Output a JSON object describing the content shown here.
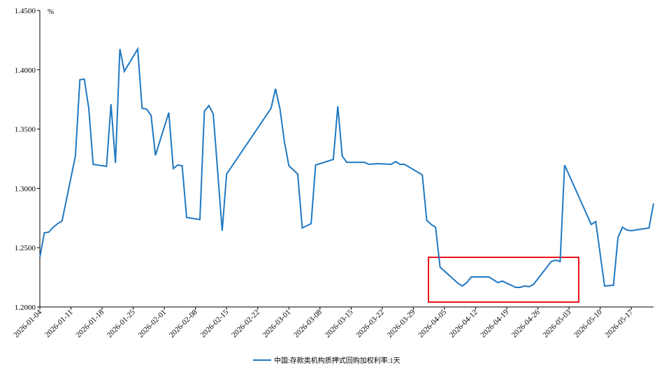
{
  "chart_data": {
    "type": "line",
    "unit_label": "%",
    "x": [
      "2026-01-04",
      "2026-01-05",
      "2026-01-06",
      "2026-01-07",
      "2026-01-08",
      "2026-01-09",
      "2026-01-12",
      "2026-01-13",
      "2026-01-14",
      "2026-01-15",
      "2026-01-16",
      "2026-01-19",
      "2026-01-20",
      "2026-01-21",
      "2026-01-22",
      "2026-01-23",
      "2026-01-26",
      "2026-01-27",
      "2026-01-28",
      "2026-01-29",
      "2026-01-30",
      "2026-02-02",
      "2026-02-03",
      "2026-02-04",
      "2026-02-05",
      "2026-02-06",
      "2026-02-09",
      "2026-02-10",
      "2026-02-11",
      "2026-02-12",
      "2026-02-14",
      "2026-02-15",
      "2026-02-25",
      "2026-02-26",
      "2026-02-27",
      "2026-02-28",
      "2026-03-01",
      "2026-03-03",
      "2026-03-04",
      "2026-03-06",
      "2026-03-07",
      "2026-03-11",
      "2026-03-12",
      "2026-03-13",
      "2026-03-14",
      "2026-03-18",
      "2026-03-19",
      "2026-03-21",
      "2026-03-24",
      "2026-03-25",
      "2026-03-26",
      "2026-03-27",
      "2026-03-31",
      "2026-04-01",
      "2026-04-02",
      "2026-04-03",
      "2026-04-04",
      "2026-04-08",
      "2026-04-09",
      "2026-04-10",
      "2026-04-11",
      "2026-04-15",
      "2026-04-17",
      "2026-04-18",
      "2026-04-21",
      "2026-04-22",
      "2026-04-23",
      "2026-04-24",
      "2026-04-25",
      "2026-04-29",
      "2026-04-30",
      "2026-05-01",
      "2026-05-02",
      "2026-05-08",
      "2026-05-09",
      "2026-05-11",
      "2026-05-13",
      "2026-05-14",
      "2026-05-15",
      "2026-05-16",
      "2026-05-17",
      "2026-05-21",
      "2026-05-22"
    ],
    "series": [
      {
        "name": "中国:存款类机构质押式回购加权利率:1天",
        "color": "#1f78c1",
        "values": [
          1.2418,
          1.2625,
          1.2631,
          1.2672,
          1.2702,
          1.2725,
          1.3274,
          1.3916,
          1.3922,
          1.3675,
          1.3203,
          1.3185,
          1.371,
          1.3215,
          1.4176,
          1.3987,
          1.4176,
          1.3675,
          1.3669,
          1.3616,
          1.3279,
          1.3639,
          1.3167,
          1.3197,
          1.3191,
          1.2755,
          1.2737,
          1.3651,
          1.3698,
          1.3627,
          1.2643,
          1.312,
          1.3675,
          1.384,
          1.3669,
          1.3392,
          1.3191,
          1.312,
          1.2666,
          1.2702,
          1.3197,
          1.3244,
          1.3692,
          1.3274,
          1.322,
          1.322,
          1.3203,
          1.3209,
          1.3203,
          1.3226,
          1.3203,
          1.3203,
          1.3114,
          1.2731,
          1.2696,
          1.2672,
          1.2336,
          1.22,
          1.2177,
          1.2206,
          1.2253,
          1.2253,
          1.2206,
          1.2218,
          1.2165,
          1.2165,
          1.2177,
          1.2171,
          1.2189,
          1.2383,
          1.2395,
          1.2383,
          1.3197,
          1.2696,
          1.272,
          1.2177,
          1.2183,
          1.2584,
          1.2672,
          1.2649,
          1.2643,
          1.2666,
          1.2873
        ]
      }
    ],
    "xlim": [
      "2026-01-04",
      "2026-05-22"
    ],
    "xticks": [
      "2026-01-04",
      "2026-01-11",
      "2026-01-18",
      "2026-01-25",
      "2026-02-01",
      "2026-02-08",
      "2026-02-15",
      "2026-02-22",
      "2026-03-01",
      "2026-03-08",
      "2026-03-15",
      "2026-03-22",
      "2026-03-29",
      "2026-04-05",
      "2026-04-12",
      "2026-04-19",
      "2026-04-26",
      "2026-05-03",
      "2026-05-10",
      "2026-05-17"
    ],
    "ylim": [
      1.2,
      1.45
    ],
    "yticks": [
      {
        "value": 1.2,
        "label": "1.2000"
      },
      {
        "value": 1.25,
        "label": "1.2500"
      },
      {
        "value": 1.3,
        "label": "1.3000"
      },
      {
        "value": 1.35,
        "label": "1.3500"
      },
      {
        "value": 1.4,
        "label": "1.4000"
      },
      {
        "value": 1.45,
        "label": "1.4500"
      }
    ],
    "grid": false,
    "legend": "bottom"
  }
}
